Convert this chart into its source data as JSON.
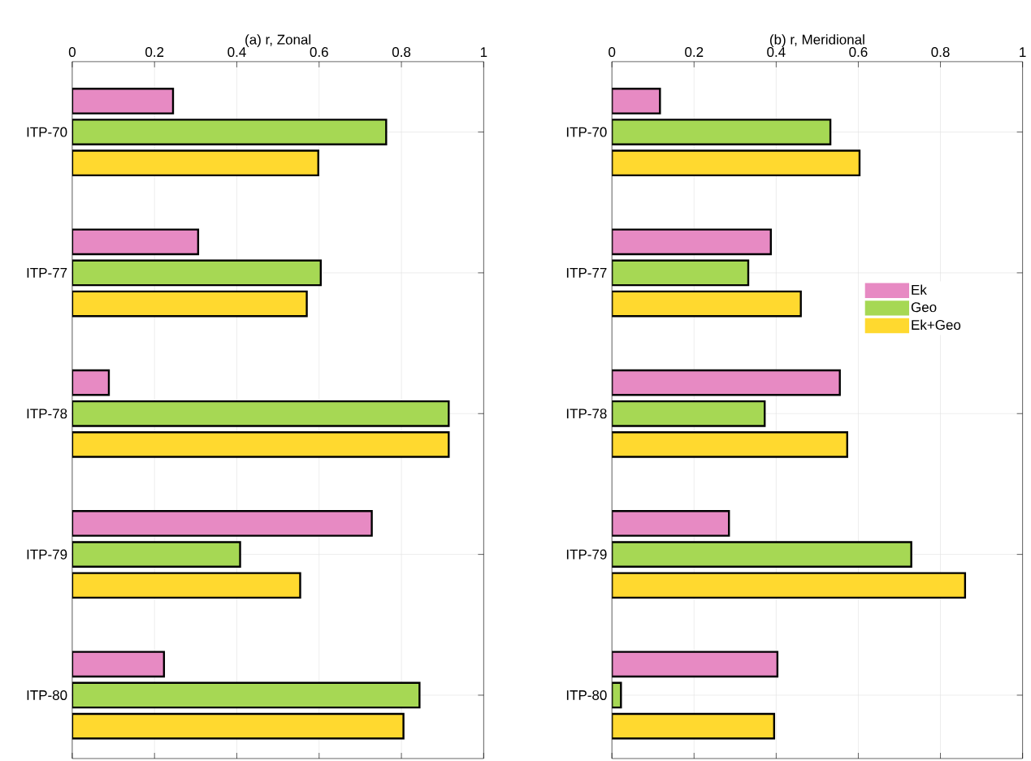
{
  "chart_data": [
    {
      "type": "bar",
      "orientation": "horizontal",
      "title": "(a) r, Zonal",
      "categories": [
        "ITP-70",
        "ITP-77",
        "ITP-78",
        "ITP-79",
        "ITP-80"
      ],
      "series": [
        {
          "color": "#e78ac3",
          "values": [
            0.245,
            0.306,
            0.089,
            0.728,
            0.223
          ]
        },
        {
          "color": "#a6d854",
          "values": [
            0.763,
            0.604,
            0.915,
            0.408,
            0.844
          ]
        },
        {
          "color": "#ffd92f",
          "values": [
            0.598,
            0.57,
            0.915,
            0.554,
            0.805
          ]
        }
      ],
      "xlim": [
        0,
        1
      ],
      "xticks": [
        0,
        0.2,
        0.4,
        0.6,
        0.8,
        1
      ],
      "grid": true,
      "legend": false
    },
    {
      "type": "bar",
      "orientation": "horizontal",
      "title": "(b) r, Meridional",
      "categories": [
        "ITP-70",
        "ITP-77",
        "ITP-78",
        "ITP-79",
        "ITP-80"
      ],
      "series": [
        {
          "name": "Ek",
          "color": "#e78ac3",
          "values": [
            0.117,
            0.387,
            0.555,
            0.285,
            0.403
          ]
        },
        {
          "name": "Geo",
          "color": "#a6d854",
          "values": [
            0.532,
            0.332,
            0.372,
            0.729,
            0.022
          ]
        },
        {
          "name": "Ek+Geo",
          "color": "#ffd92f",
          "values": [
            0.603,
            0.46,
            0.573,
            0.86,
            0.395
          ]
        }
      ],
      "xlim": [
        0,
        1
      ],
      "xticks": [
        0,
        0.2,
        0.4,
        0.6,
        0.8,
        1
      ],
      "grid": true,
      "legend": "right"
    }
  ]
}
